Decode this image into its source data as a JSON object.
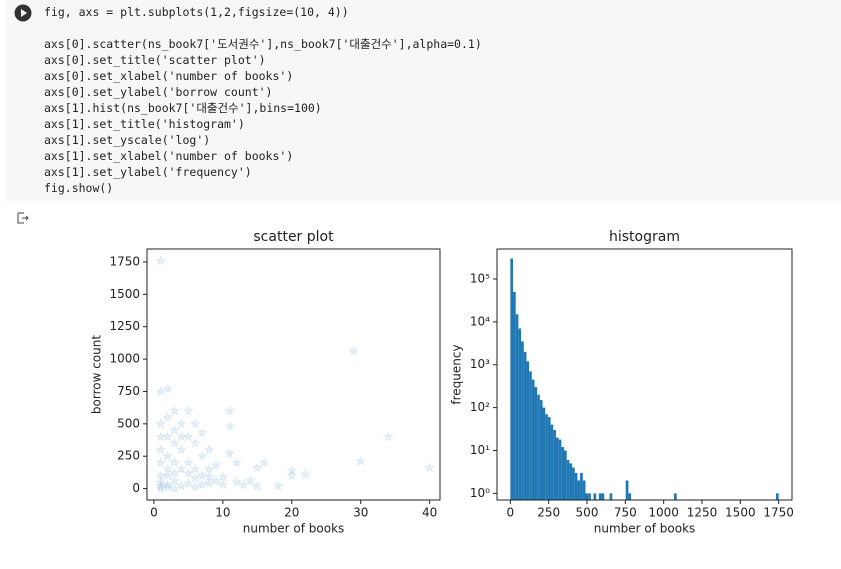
{
  "code": {
    "lines": [
      "fig, axs = plt.subplots(1,2,figsize=(10, 4))",
      "axs[0].scatter(ns_book7['도서권수'],ns_book7['대출건수'],alpha=0.1)",
      "axs[0].set_title('scatter plot')",
      "axs[0].set_xlabel('number of books')",
      "axs[0].set_ylabel('borrow count')",
      "axs[1].hist(ns_book7['대출건수'],bins=100)",
      "axs[1].set_title('histogram')",
      "axs[1].set_yscale('log')",
      "axs[1].set_xlabel('number of books')",
      "axs[1].set_ylabel('frequency')",
      "fig.show()"
    ]
  },
  "chart_data": [
    {
      "type": "scatter",
      "title": "scatter plot",
      "x_label": "number of books",
      "y_label": "borrow count",
      "color": "#1f77b4",
      "alpha": 0.1,
      "x": [
        1,
        29,
        34,
        30,
        40,
        20,
        20,
        22,
        18,
        16,
        15,
        12,
        11,
        11,
        10,
        9,
        8,
        8,
        8,
        7,
        7,
        6,
        6,
        5,
        5,
        4,
        4,
        3,
        3,
        2,
        2,
        2,
        1,
        1,
        1,
        1,
        1,
        1,
        2,
        2,
        2,
        3,
        3,
        4,
        4,
        5,
        5,
        6,
        7,
        7,
        9,
        10,
        12,
        13,
        14,
        15,
        3,
        4,
        6,
        11,
        2,
        3,
        1,
        2,
        5,
        8,
        1,
        1,
        3,
        6
      ],
      "y": [
        1760,
        1060,
        400,
        210,
        160,
        140,
        100,
        110,
        20,
        200,
        160,
        200,
        270,
        480,
        90,
        180,
        300,
        150,
        40,
        430,
        250,
        350,
        150,
        600,
        400,
        500,
        300,
        600,
        350,
        770,
        550,
        400,
        750,
        500,
        300,
        200,
        100,
        20,
        250,
        100,
        30,
        200,
        60,
        150,
        20,
        200,
        40,
        80,
        100,
        30,
        60,
        30,
        50,
        30,
        60,
        20,
        450,
        400,
        500,
        600,
        150,
        120,
        50,
        10,
        120,
        90,
        400,
        0,
        0,
        10
      ],
      "xlim": [
        -1,
        41.5
      ],
      "ylim": [
        -88,
        1850
      ],
      "xticks": [
        0,
        10,
        20,
        30,
        40
      ],
      "yticks": [
        0,
        250,
        500,
        750,
        1000,
        1250,
        1500,
        1750
      ]
    },
    {
      "type": "histogram",
      "title": "histogram",
      "x_label": "number of books",
      "y_label": "frequency",
      "color": "#1f77b4",
      "log_y": true,
      "bins": [
        0,
        17.5,
        35,
        52.5,
        70,
        87.5,
        105,
        122.5,
        140,
        157.5,
        175,
        192.5,
        210,
        227.5,
        245,
        262.5,
        280,
        297.5,
        315,
        332.5,
        350,
        367.5,
        385,
        402.5,
        420,
        437.5,
        455,
        472.5,
        490,
        507.5,
        525,
        542.5,
        560,
        577.5,
        595,
        612.5,
        630,
        647.5,
        665,
        682.5,
        700,
        717.5,
        735,
        752.5,
        770,
        787.5,
        805,
        822.5,
        840,
        857.5,
        875,
        892.5,
        910,
        927.5,
        945,
        962.5,
        980,
        997.5,
        1015,
        1032.5,
        1050,
        1067.5,
        1085,
        1102.5,
        1120,
        1137.5,
        1155,
        1172.5,
        1190,
        1207.5,
        1225,
        1242.5,
        1260,
        1277.5,
        1295,
        1312.5,
        1330,
        1347.5,
        1365,
        1382.5,
        1400,
        1417.5,
        1435,
        1452.5,
        1470,
        1487.5,
        1505,
        1522.5,
        1540,
        1557.5,
        1575,
        1592.5,
        1610,
        1627.5,
        1645,
        1662.5,
        1680,
        1697.5,
        1715,
        1732.5,
        1750
      ],
      "values": [
        300000,
        50000,
        15000,
        7000,
        3500,
        2000,
        1200,
        700,
        450,
        300,
        200,
        150,
        100,
        70,
        60,
        40,
        30,
        20,
        18,
        12,
        10,
        6,
        5,
        4,
        3,
        2,
        3,
        2,
        1,
        1,
        0,
        1,
        0,
        1,
        1,
        0,
        0,
        1,
        0,
        0,
        0,
        0,
        0,
        2,
        1,
        0,
        0,
        0,
        0,
        0,
        0,
        0,
        0,
        0,
        0,
        0,
        0,
        0,
        0,
        0,
        0,
        1,
        0,
        0,
        0,
        0,
        0,
        0,
        0,
        0,
        0,
        0,
        0,
        0,
        0,
        0,
        0,
        0,
        0,
        0,
        0,
        0,
        0,
        0,
        0,
        0,
        0,
        0,
        0,
        0,
        0,
        0,
        0,
        0,
        0,
        0,
        0,
        0,
        0,
        1
      ],
      "xlim": [
        -87,
        1837
      ],
      "ylim": [
        0.7,
        500000
      ],
      "xticks": [
        0,
        250,
        500,
        750,
        1000,
        1250,
        1500,
        1750
      ],
      "yticks": [
        {
          "value": 1,
          "label": "10⁰"
        },
        {
          "value": 10,
          "label": "10¹"
        },
        {
          "value": 100,
          "label": "10²"
        },
        {
          "value": 1000,
          "label": "10³"
        },
        {
          "value": 10000,
          "label": "10⁴"
        },
        {
          "value": 100000,
          "label": "10⁵"
        }
      ]
    }
  ]
}
